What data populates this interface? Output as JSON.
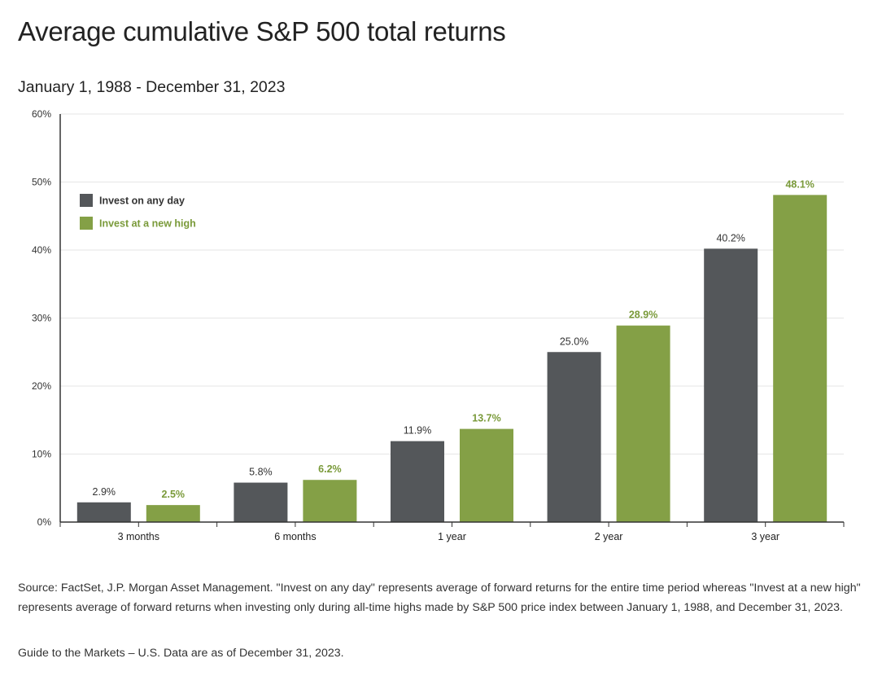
{
  "title": "Average cumulative S&P 500 total returns",
  "subtitle": "January 1, 1988 - December 31, 2023",
  "source_note": "Source: FactSet, J.P. Morgan Asset Management. \"Invest on any day\" represents average of forward returns for the entire time period whereas \"Invest at a new high\" represents average of forward returns when investing only during all-time highs made by S&P 500 price index between January 1, 1988, and December 31, 2023.",
  "footer_note": "Guide to the Markets – U.S. Data are as of December 31, 2023.",
  "colors": {
    "any_day": "#54575a",
    "new_high": "#84a046",
    "new_high_label": "#7a9a3a",
    "grid": "#e6e6e6",
    "axis": "#333333"
  },
  "chart_data": {
    "type": "bar",
    "categories": [
      "3 months",
      "6 months",
      "1 year",
      "2 year",
      "3 year"
    ],
    "series": [
      {
        "name": "Invest on any day",
        "values": [
          2.9,
          5.8,
          11.9,
          25.0,
          40.2
        ],
        "labels": [
          "2.9%",
          "5.8%",
          "11.9%",
          "25.0%",
          "40.2%"
        ],
        "color": "#54575a"
      },
      {
        "name": "Invest at a new high",
        "values": [
          2.5,
          6.2,
          13.7,
          28.9,
          48.1
        ],
        "labels": [
          "2.5%",
          "6.2%",
          "13.7%",
          "28.9%",
          "48.1%"
        ],
        "color": "#84a046"
      }
    ],
    "ylim": [
      0,
      60
    ],
    "yticks": [
      "0%",
      "10%",
      "20%",
      "30%",
      "40%",
      "50%",
      "60%"
    ],
    "ytick_values": [
      0,
      10,
      20,
      30,
      40,
      50,
      60
    ],
    "grid": true,
    "legend": "top-left",
    "xlabel": "",
    "ylabel": ""
  }
}
